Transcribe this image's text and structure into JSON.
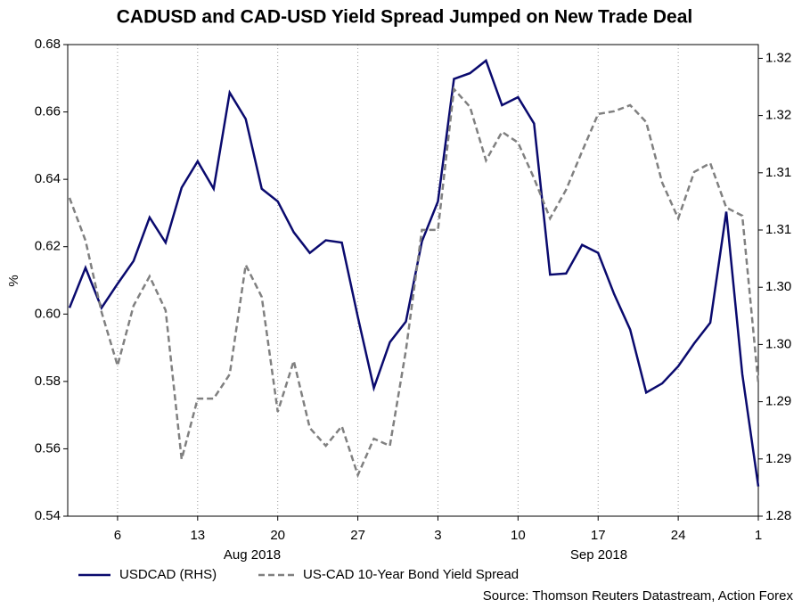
{
  "chart_data": {
    "type": "line",
    "title": "CADUSD and CAD-USD Yield Spread Jumped on New Trade Deal",
    "ylabel": "%",
    "source": "Source: Thomson Reuters Datastream, Action Forex",
    "months": [
      "Aug 2018",
      "Sep 2018"
    ],
    "categories": [
      null,
      null,
      null,
      "6",
      null,
      null,
      null,
      null,
      "13",
      null,
      null,
      null,
      null,
      "20",
      null,
      null,
      null,
      null,
      "27",
      null,
      null,
      null,
      null,
      "3",
      null,
      null,
      null,
      null,
      "10",
      null,
      null,
      null,
      null,
      "17",
      null,
      null,
      null,
      null,
      "24",
      null,
      null,
      null,
      null,
      "1"
    ],
    "series": [
      {
        "name": "USDCAD (RHS)",
        "color": "#0a0a6e",
        "axis": "y2",
        "dash": false,
        "values": [
          1.2982,
          1.3017,
          1.2982,
          1.3003,
          1.3023,
          1.3061,
          1.3039,
          1.3087,
          1.311,
          1.3086,
          1.317,
          1.3147,
          1.3086,
          1.3075,
          1.3048,
          1.303,
          1.3041,
          1.3039,
          1.2974,
          1.2912,
          1.2952,
          1.297,
          1.304,
          1.3075,
          1.3182,
          1.3187,
          1.3198,
          1.3159,
          1.3166,
          1.3143,
          1.3011,
          1.3012,
          1.3037,
          1.303,
          1.2994,
          1.2963,
          1.2908,
          1.2916,
          1.2931,
          1.2951,
          1.2969,
          1.3066,
          1.2924,
          1.2826
        ]
      },
      {
        "name": "US-CAD 10-Year Bond Yield Spread",
        "color": "#808080",
        "axis": "y",
        "dash": true,
        "values": [
          0.6345,
          0.6218,
          0.6006,
          0.5847,
          0.6025,
          0.6112,
          0.6011,
          0.5569,
          0.5749,
          0.5749,
          0.5821,
          0.6146,
          0.6051,
          0.571,
          0.5861,
          0.5662,
          0.5609,
          0.5667,
          0.5522,
          0.563,
          0.5609,
          0.5892,
          0.625,
          0.625,
          0.6668,
          0.6615,
          0.6456,
          0.6541,
          0.6509,
          0.6403,
          0.6284,
          0.6369,
          0.6483,
          0.6594,
          0.6602,
          0.662,
          0.657,
          0.639,
          0.6284,
          0.6422,
          0.6448,
          0.6316,
          0.6292,
          0.5794
        ]
      }
    ],
    "ylim": [
      0.54,
      0.68
    ],
    "yticks": [
      0.54,
      0.56,
      0.58,
      {
        "value": 0.6,
        "label": "0.60"
      },
      0.62,
      0.64,
      0.66,
      0.68
    ],
    "y2lim": [
      1.28,
      1.3212
    ],
    "y2ticks": [
      1.28,
      {
        "value": 1.285,
        "label": "1.29"
      },
      1.29,
      {
        "value": 1.295,
        "label": "1.30"
      },
      {
        "value": 1.3,
        "label": "1.30"
      },
      {
        "value": 1.305,
        "label": "1.31"
      },
      1.31,
      {
        "value": 1.315,
        "label": "1.32"
      },
      1.32
    ],
    "grid": "x",
    "legend": "bottom-left"
  }
}
